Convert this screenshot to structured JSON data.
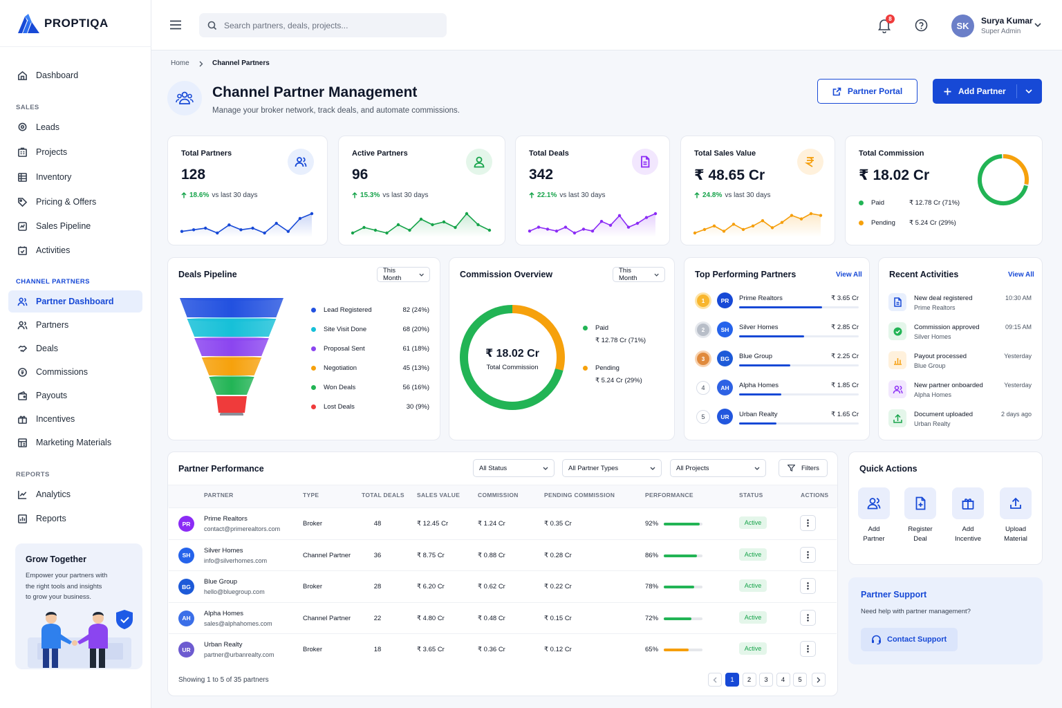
{
  "brand": {
    "name": "PROPTIQA"
  },
  "sidebar": {
    "dashboard": "Dashboard",
    "sales_label": "SALES",
    "sales_items": [
      "Leads",
      "Projects",
      "Inventory",
      "Pricing & Offers",
      "Sales Pipeline",
      "Activities"
    ],
    "channel_label": "CHANNEL PARTNERS",
    "channel_items": [
      "Partner Dashboard",
      "Partners",
      "Deals",
      "Commissions",
      "Payouts",
      "Incentives",
      "Marketing Materials"
    ],
    "reports_label": "REPORTS",
    "reports_items": [
      "Analytics",
      "Reports"
    ],
    "promo": {
      "title": "Grow Together",
      "line1": "Empower your partners with",
      "line2": "the right tools and insights",
      "line3": "to grow your business."
    }
  },
  "header": {
    "search_placeholder": "Search partners, deals, projects...",
    "notification_count": "8",
    "user_name": "Surya Kumar",
    "user_role": "Super Admin",
    "user_initials": "SK"
  },
  "breadcrumb": {
    "home": "Home",
    "current": "Channel Partners"
  },
  "page": {
    "title": "Channel Partner Management",
    "subtitle": "Manage your broker network, track deals, and automate commissions.",
    "portal_button": "Partner Portal",
    "add_button": "Add Partner"
  },
  "kpis": [
    {
      "label": "Total Partners",
      "value": "128",
      "trend": "18.6%",
      "trend_text": "vs last 30 days",
      "color": "#1749d6",
      "spark": [
        7,
        8,
        9,
        6,
        11,
        8,
        9,
        6,
        12,
        7,
        15,
        18
      ]
    },
    {
      "label": "Active Partners",
      "value": "96",
      "trend": "15.3%",
      "trend_text": "vs last 30 days",
      "color": "#16a34a",
      "spark": [
        6,
        8,
        7,
        6,
        9,
        7,
        11,
        9,
        10,
        8,
        13,
        9,
        7
      ]
    },
    {
      "label": "Total Deals",
      "value": "342",
      "trend": "22.1%",
      "trend_text": "vs last 30 days",
      "color": "#8b2cf5",
      "spark": [
        6,
        8,
        7,
        6,
        8,
        5,
        7,
        6,
        11,
        9,
        14,
        8,
        10,
        13,
        15
      ]
    },
    {
      "label": "Total Sales Value",
      "value": "₹ 48.65 Cr",
      "trend": "24.8%",
      "trend_text": "vs last 30 days",
      "color": "#f59e0b",
      "spark": [
        5,
        7,
        9,
        6,
        10,
        7,
        9,
        12,
        8,
        11,
        15,
        13,
        16,
        15
      ]
    },
    {
      "label": "Total Commission",
      "value": "₹ 18.02 Cr",
      "paid_label": "Paid",
      "paid_value": "₹ 12.78 Cr (71%)",
      "pending_label": "Pending",
      "pending_value": "₹ 5.24 Cr (29%)",
      "paid_pct": 71
    }
  ],
  "pipeline": {
    "title": "Deals Pipeline",
    "filter": "This Month",
    "stages": [
      {
        "name": "Lead Registered",
        "value": "82 (24%)",
        "color": "#2251e0"
      },
      {
        "name": "Site Visit Done",
        "value": "68 (20%)",
        "color": "#16c0d8"
      },
      {
        "name": "Proposal Sent",
        "value": "61 (18%)",
        "color": "#8b45f0"
      },
      {
        "name": "Negotiation",
        "value": "45 (13%)",
        "color": "#f6a10c"
      },
      {
        "name": "Won Deals",
        "value": "56 (16%)",
        "color": "#22b455"
      },
      {
        "name": "Lost Deals",
        "value": "30 (9%)",
        "color": "#ef3b3b"
      }
    ]
  },
  "commission": {
    "title": "Commission Overview",
    "filter": "This Month",
    "center_value": "₹ 18.02 Cr",
    "center_label": "Total Commission",
    "paid_label": "Paid",
    "paid_value": "₹ 12.78 Cr (71%)",
    "pending_label": "Pending",
    "pending_value": "₹ 5.24 Cr (29%)",
    "paid_pct": 71
  },
  "top_partners": {
    "title": "Top Performing Partners",
    "view_all": "View All",
    "items": [
      {
        "rank": "1",
        "initials": "PR",
        "name": "Prime Realtors",
        "value": "₹ 3.65 Cr",
        "share": 1.0
      },
      {
        "rank": "2",
        "initials": "SH",
        "name": "Silver Homes",
        "value": "₹ 2.85 Cr",
        "share": 0.78
      },
      {
        "rank": "3",
        "initials": "BG",
        "name": "Blue Group",
        "value": "₹ 2.25 Cr",
        "share": 0.62
      },
      {
        "rank": "4",
        "initials": "AH",
        "name": "Alpha Homes",
        "value": "₹ 1.85 Cr",
        "share": 0.51
      },
      {
        "rank": "5",
        "initials": "UR",
        "name": "Urban Realty",
        "value": "₹ 1.65 Cr",
        "share": 0.45
      }
    ]
  },
  "activities": {
    "title": "Recent Activities",
    "view_all": "View All",
    "items": [
      {
        "title": "New deal registered",
        "sub": "Prime Realtors",
        "time": "10:30 AM",
        "icon": "document-icon"
      },
      {
        "title": "Commission approved",
        "sub": "Silver Homes",
        "time": "09:15 AM",
        "icon": "check-circle-icon"
      },
      {
        "title": "Payout processed",
        "sub": "Blue Group",
        "time": "Yesterday",
        "icon": "bar-chart-icon"
      },
      {
        "title": "New partner onboarded",
        "sub": "Alpha Homes",
        "time": "Yesterday",
        "icon": "users-icon"
      },
      {
        "title": "Document uploaded",
        "sub": "Urban Realty",
        "time": "2 days ago",
        "icon": "upload-icon"
      }
    ]
  },
  "performance": {
    "title": "Partner Performance",
    "filters": [
      "All Status",
      "All Partner Types",
      "All Projects"
    ],
    "filters_button": "Filters",
    "columns": [
      "PARTNER",
      "TYPE",
      "TOTAL DEALS",
      "SALES VALUE",
      "COMMISSION",
      "PENDING COMMISSION",
      "PERFORMANCE",
      "STATUS",
      "ACTIONS"
    ],
    "rows": [
      {
        "initials": "PR",
        "name": "Prime Realtors",
        "email": "contact@primerealtors.com",
        "type": "Broker",
        "deals": "48",
        "sales": "₹ 12.45 Cr",
        "commission": "₹ 1.24 Cr",
        "pending": "₹ 0.35 Cr",
        "performance": "92%",
        "perf": 92,
        "status": "Active"
      },
      {
        "initials": "SH",
        "name": "Silver Homes",
        "email": "info@silverhomes.com",
        "type": "Channel Partner",
        "deals": "36",
        "sales": "₹ 8.75 Cr",
        "commission": "₹ 0.88 Cr",
        "pending": "₹ 0.28 Cr",
        "performance": "86%",
        "perf": 86,
        "status": "Active"
      },
      {
        "initials": "BG",
        "name": "Blue Group",
        "email": "hello@bluegroup.com",
        "type": "Broker",
        "deals": "28",
        "sales": "₹ 6.20 Cr",
        "commission": "₹ 0.62 Cr",
        "pending": "₹ 0.22 Cr",
        "performance": "78%",
        "perf": 78,
        "status": "Active"
      },
      {
        "initials": "AH",
        "name": "Alpha Homes",
        "email": "sales@alphahomes.com",
        "type": "Channel Partner",
        "deals": "22",
        "sales": "₹ 4.80 Cr",
        "commission": "₹ 0.48 Cr",
        "pending": "₹ 0.15 Cr",
        "performance": "72%",
        "perf": 72,
        "status": "Active"
      },
      {
        "initials": "UR",
        "name": "Urban Realty",
        "email": "partner@urbanrealty.com",
        "type": "Broker",
        "deals": "18",
        "sales": "₹ 3.65 Cr",
        "commission": "₹ 0.36 Cr",
        "pending": "₹ 0.12 Cr",
        "performance": "65%",
        "perf": 65,
        "status": "Active"
      }
    ],
    "footer": "Showing 1 to 5 of 35 partners",
    "pages": [
      "1",
      "2",
      "3",
      "4",
      "5"
    ],
    "current_page": "1"
  },
  "quick_actions": {
    "title": "Quick Actions",
    "items": [
      {
        "line1": "Add",
        "line2": "Partner"
      },
      {
        "line1": "Register",
        "line2": "Deal"
      },
      {
        "line1": "Add",
        "line2": "Incentive"
      },
      {
        "line1": "Upload",
        "line2": "Material"
      }
    ]
  },
  "support": {
    "title": "Partner Support",
    "text": "Need help with partner management?",
    "button": "Contact Support"
  },
  "colors": {
    "accent": "#1749d6",
    "success": "#16a34a",
    "warning": "#f59e0b",
    "purple": "#8b2cf5"
  }
}
